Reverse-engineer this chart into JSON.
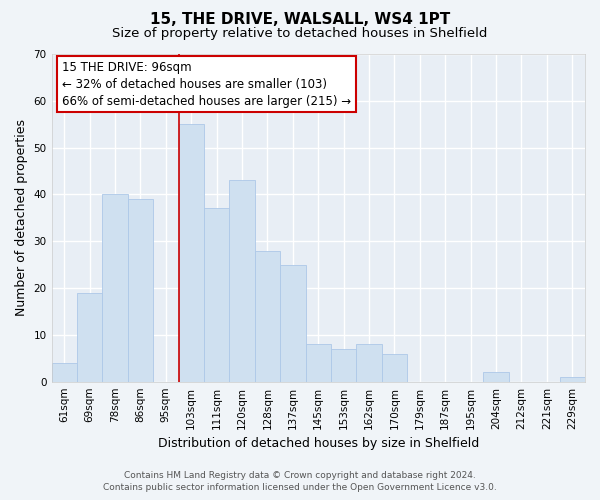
{
  "title": "15, THE DRIVE, WALSALL, WS4 1PT",
  "subtitle": "Size of property relative to detached houses in Shelfield",
  "xlabel": "Distribution of detached houses by size in Shelfield",
  "ylabel": "Number of detached properties",
  "categories": [
    "61sqm",
    "69sqm",
    "78sqm",
    "86sqm",
    "95sqm",
    "103sqm",
    "111sqm",
    "120sqm",
    "128sqm",
    "137sqm",
    "145sqm",
    "153sqm",
    "162sqm",
    "170sqm",
    "179sqm",
    "187sqm",
    "195sqm",
    "204sqm",
    "212sqm",
    "221sqm",
    "229sqm"
  ],
  "values": [
    4,
    19,
    40,
    39,
    0,
    55,
    37,
    43,
    28,
    25,
    8,
    7,
    8,
    6,
    0,
    0,
    0,
    2,
    0,
    0,
    1
  ],
  "bar_color": "#cfe0f0",
  "bar_edge_color": "#adc8e8",
  "vline_color": "#cc0000",
  "vline_index": 4.5,
  "ylim": [
    0,
    70
  ],
  "yticks": [
    0,
    10,
    20,
    30,
    40,
    50,
    60,
    70
  ],
  "annotation_box_text": "15 THE DRIVE: 96sqm\n← 32% of detached houses are smaller (103)\n66% of semi-detached houses are larger (215) →",
  "footer_line1": "Contains HM Land Registry data © Crown copyright and database right 2024.",
  "footer_line2": "Contains public sector information licensed under the Open Government Licence v3.0.",
  "background_color": "#f0f4f8",
  "plot_bg_color": "#e8eef5",
  "grid_color": "#ffffff",
  "title_fontsize": 11,
  "subtitle_fontsize": 9.5,
  "axis_label_fontsize": 9,
  "tick_fontsize": 7.5,
  "footer_fontsize": 6.5,
  "ann_fontsize": 8.5
}
